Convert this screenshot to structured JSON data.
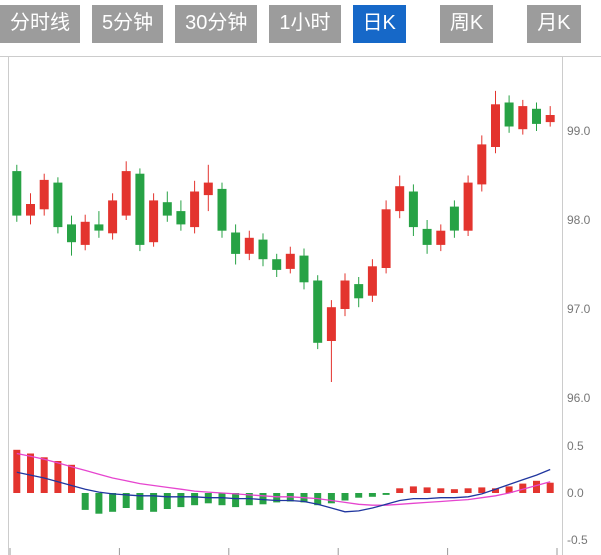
{
  "tabs": [
    {
      "name": "tab-timeline",
      "label": "分时线",
      "selected": false
    },
    {
      "name": "tab-5min",
      "label": "5分钟",
      "selected": false
    },
    {
      "name": "tab-30min",
      "label": "30分钟",
      "selected": false
    },
    {
      "name": "tab-1hour",
      "label": "1小时",
      "selected": false
    },
    {
      "name": "tab-daily-k",
      "label": "日K",
      "selected": true
    },
    {
      "name": "tab-weekly-k",
      "label": "周K",
      "selected": false
    },
    {
      "name": "tab-monthly-k",
      "label": "月K",
      "selected": false
    }
  ],
  "colors": {
    "up": "#e3342e",
    "down": "#27a245",
    "diff_line": "#20369f",
    "dea_line": "#e645cf",
    "tab_bg": "#9c9c9c",
    "tab_selected_bg": "#1668c8",
    "axis_text": "#777777",
    "border": "#cccccc",
    "tick": "#999999"
  },
  "chart_data": {
    "type": "candlestick+macd",
    "title": "",
    "price_axis_ticks": [
      99.0,
      98.0,
      97.0,
      96.0
    ],
    "macd_axis_ticks": [
      0.5,
      0.0,
      -0.5
    ],
    "price_axis_side": "right",
    "grid": false,
    "candles_ohlc": [
      [
        98.55,
        98.62,
        97.98,
        98.05
      ],
      [
        98.05,
        98.3,
        97.95,
        98.18
      ],
      [
        98.12,
        98.52,
        98.05,
        98.45
      ],
      [
        98.42,
        98.48,
        97.85,
        97.92
      ],
      [
        97.95,
        98.05,
        97.6,
        97.75
      ],
      [
        97.72,
        98.06,
        97.66,
        97.98
      ],
      [
        97.95,
        98.1,
        97.8,
        97.88
      ],
      [
        97.85,
        98.3,
        97.78,
        98.22
      ],
      [
        98.05,
        98.66,
        98.0,
        98.55
      ],
      [
        98.52,
        98.58,
        97.65,
        97.72
      ],
      [
        97.75,
        98.3,
        97.7,
        98.22
      ],
      [
        98.2,
        98.32,
        97.98,
        98.05
      ],
      [
        98.1,
        98.22,
        97.88,
        97.95
      ],
      [
        97.92,
        98.44,
        97.85,
        98.32
      ],
      [
        98.28,
        98.62,
        98.1,
        98.42
      ],
      [
        98.35,
        98.42,
        97.8,
        97.88
      ],
      [
        97.86,
        97.95,
        97.5,
        97.62
      ],
      [
        97.62,
        97.88,
        97.55,
        97.8
      ],
      [
        97.78,
        97.85,
        97.48,
        97.56
      ],
      [
        97.56,
        97.62,
        97.36,
        97.44
      ],
      [
        97.45,
        97.7,
        97.4,
        97.62
      ],
      [
        97.6,
        97.68,
        97.22,
        97.3
      ],
      [
        97.32,
        97.38,
        96.55,
        96.62
      ],
      [
        96.64,
        97.1,
        96.18,
        97.02
      ],
      [
        97.0,
        97.4,
        96.92,
        97.32
      ],
      [
        97.28,
        97.36,
        97.02,
        97.12
      ],
      [
        97.15,
        97.56,
        97.08,
        97.48
      ],
      [
        97.46,
        98.22,
        97.4,
        98.12
      ],
      [
        98.1,
        98.5,
        98.02,
        98.38
      ],
      [
        98.32,
        98.4,
        97.82,
        97.92
      ],
      [
        97.9,
        98.0,
        97.62,
        97.72
      ],
      [
        97.72,
        97.95,
        97.65,
        97.88
      ],
      [
        98.15,
        98.22,
        97.8,
        97.88
      ],
      [
        97.88,
        98.5,
        97.82,
        98.42
      ],
      [
        98.4,
        98.95,
        98.32,
        98.85
      ],
      [
        98.82,
        99.45,
        98.75,
        99.3
      ],
      [
        99.32,
        99.4,
        98.98,
        99.05
      ],
      [
        99.02,
        99.35,
        98.96,
        99.28
      ],
      [
        99.25,
        99.32,
        99.0,
        99.08
      ],
      [
        99.1,
        99.28,
        99.05,
        99.18
      ]
    ],
    "macd": {
      "histogram": [
        0.46,
        0.42,
        0.38,
        0.34,
        0.3,
        -0.18,
        -0.22,
        -0.2,
        -0.16,
        -0.18,
        -0.2,
        -0.17,
        -0.15,
        -0.13,
        -0.11,
        -0.13,
        -0.15,
        -0.13,
        -0.12,
        -0.1,
        -0.09,
        -0.1,
        -0.13,
        -0.11,
        -0.08,
        -0.05,
        -0.04,
        -0.02,
        0.05,
        0.07,
        0.06,
        0.05,
        0.04,
        0.05,
        0.06,
        0.05,
        0.07,
        0.1,
        0.13,
        0.11
      ],
      "diff": [
        0.22,
        0.19,
        0.16,
        0.12,
        0.08,
        0.04,
        0.01,
        -0.01,
        -0.02,
        -0.03,
        -0.03,
        -0.04,
        -0.04,
        -0.04,
        -0.05,
        -0.05,
        -0.06,
        -0.06,
        -0.07,
        -0.08,
        -0.08,
        -0.09,
        -0.12,
        -0.16,
        -0.2,
        -0.19,
        -0.16,
        -0.12,
        -0.08,
        -0.06,
        -0.06,
        -0.05,
        -0.05,
        -0.04,
        -0.01,
        0.04,
        0.09,
        0.14,
        0.19,
        0.25
      ],
      "dea": [
        0.42,
        0.39,
        0.36,
        0.32,
        0.28,
        0.24,
        0.2,
        0.16,
        0.13,
        0.1,
        0.08,
        0.06,
        0.04,
        0.02,
        0.01,
        0.0,
        -0.01,
        -0.02,
        -0.03,
        -0.04,
        -0.04,
        -0.05,
        -0.06,
        -0.08,
        -0.1,
        -0.12,
        -0.13,
        -0.13,
        -0.12,
        -0.11,
        -0.1,
        -0.09,
        -0.08,
        -0.07,
        -0.05,
        -0.03,
        0.0,
        0.04,
        0.08,
        0.12
      ]
    }
  }
}
